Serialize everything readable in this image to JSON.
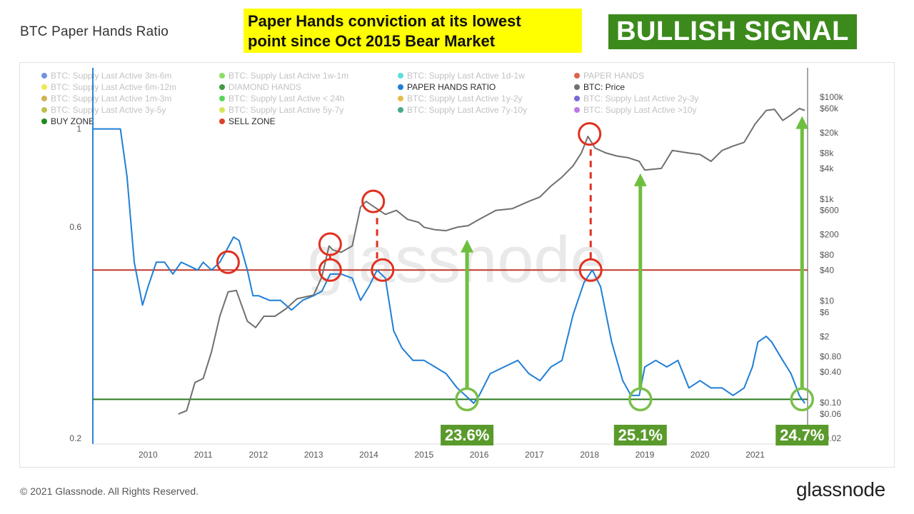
{
  "page": {
    "title": "BTC Paper Hands Ratio",
    "headline_line1": "Paper Hands conviction at its lowest",
    "headline_line2": "point since Oct 2015 Bear Market",
    "signal": "BULLISH SIGNAL",
    "copyright": "© 2021 Glassnode. All Rights Reserved.",
    "logo": "glassnode",
    "watermark": "glassnode"
  },
  "colors": {
    "ratio_line": "#1f7fd6",
    "price_line": "#707070",
    "sell_zone": "#c0392b",
    "buy_zone": "#2a7a1e",
    "headline_bg": "#ffff00",
    "signal_bg": "#3c8a1c",
    "arrow": "#6fbf3f",
    "marker_red": "#e03020",
    "marker_green": "#7abf4a",
    "label_bg": "#5a9a2c"
  },
  "chart_data": {
    "type": "line",
    "x_axis": {
      "ticks": [
        "2010",
        "2011",
        "2012",
        "2013",
        "2014",
        "2015",
        "2016",
        "2017",
        "2018",
        "2019",
        "2020",
        "2021"
      ],
      "range": [
        2009.0,
        2021.95
      ]
    },
    "y_left": {
      "scale": "log",
      "ticks": [
        "1",
        "0.6",
        "0.2"
      ],
      "tick_values": [
        1,
        0.6,
        0.2
      ],
      "range": [
        0.2,
        1.3
      ]
    },
    "y_right": {
      "scale": "log",
      "ticks": [
        "$100k",
        "$60k",
        "$20k",
        "$8k",
        "$4k",
        "$1k",
        "$600",
        "$200",
        "$80",
        "$40",
        "$10",
        "$6",
        "$2",
        "$0.80",
        "$0.40",
        "$0.10",
        "$0.06",
        "$0.02"
      ],
      "tick_values": [
        100000,
        60000,
        20000,
        8000,
        4000,
        1000,
        600,
        200,
        80,
        40,
        10,
        6,
        2,
        0.8,
        0.4,
        0.1,
        0.06,
        0.02
      ],
      "range": [
        0.02,
        180000
      ]
    },
    "legend": {
      "placement": "top-left",
      "items": [
        {
          "label": "BTC: Supply Last Active 3m-6m",
          "color": "#5b7fd6",
          "muted": true
        },
        {
          "label": "BTC: Supply Last Active 1w-1m",
          "color": "#7ad84a",
          "muted": true
        },
        {
          "label": "BTC: Supply Last Active 1d-1w",
          "color": "#3fd8d8",
          "muted": true
        },
        {
          "label": "PAPER HANDS",
          "color": "#d9452a",
          "muted": true
        },
        {
          "label": "BTC: Supply Last Active 6m-12m",
          "color": "#e6e63a",
          "muted": true
        },
        {
          "label": "DIAMOND HANDS",
          "color": "#1f8a1f",
          "muted": true
        },
        {
          "label": "PAPER HANDS RATIO",
          "color": "#1f7fd6",
          "muted": false
        },
        {
          "label": "BTC: Price",
          "color": "#707070",
          "muted": false
        },
        {
          "label": "BTC: Supply Last Active 1m-3m",
          "color": "#c9a33a",
          "muted": true
        },
        {
          "label": "BTC: Supply Last Active < 24h",
          "color": "#3fcc3f",
          "muted": true
        },
        {
          "label": "BTC: Supply Last Active 1y-2y",
          "color": "#e0b030",
          "muted": true
        },
        {
          "label": "BTC: Supply Last Active 2y-3y",
          "color": "#5a4fd0",
          "muted": true
        },
        {
          "label": "BTC: Supply Last Active 3y-5y",
          "color": "#b5b530",
          "muted": true
        },
        {
          "label": "BTC: Supply Last Active 5y-7y",
          "color": "#cfe040",
          "muted": true
        },
        {
          "label": "BTC: Supply Last Active 7y-10y",
          "color": "#2a9a7a",
          "muted": true
        },
        {
          "label": "BTC: Supply Last Active >10y",
          "color": "#b060e0",
          "muted": true
        },
        {
          "label": "BUY ZONE",
          "color": "#1f8a1f",
          "muted": false
        },
        {
          "label": "SELL ZONE",
          "color": "#d9452a",
          "muted": false
        }
      ]
    },
    "sell_zone_level": 0.48,
    "buy_zone_level": 0.245,
    "series": [
      {
        "name": "PAPER HANDS RATIO",
        "axis": "left",
        "x": [
          2009.0,
          2009.5,
          2009.62,
          2009.75,
          2009.9,
          2010.0,
          2010.15,
          2010.3,
          2010.45,
          2010.6,
          2010.75,
          2010.9,
          2011.0,
          2011.15,
          2011.3,
          2011.45,
          2011.55,
          2011.65,
          2011.8,
          2011.9,
          2012.0,
          2012.2,
          2012.4,
          2012.6,
          2012.8,
          2013.0,
          2013.15,
          2013.3,
          2013.5,
          2013.7,
          2013.85,
          2014.0,
          2014.15,
          2014.3,
          2014.45,
          2014.6,
          2014.8,
          2015.0,
          2015.2,
          2015.4,
          2015.6,
          2015.75,
          2015.9,
          2016.0,
          2016.2,
          2016.45,
          2016.7,
          2016.9,
          2017.1,
          2017.3,
          2017.5,
          2017.7,
          2017.9,
          2018.05,
          2018.2,
          2018.4,
          2018.6,
          2018.75,
          2018.9,
          2019.0,
          2019.2,
          2019.4,
          2019.6,
          2019.8,
          2020.0,
          2020.2,
          2020.4,
          2020.6,
          2020.8,
          2020.95,
          2021.05,
          2021.2,
          2021.3,
          2021.5,
          2021.65,
          2021.8,
          2021.9
        ],
        "y": [
          1.0,
          1.0,
          0.78,
          0.5,
          0.4,
          0.44,
          0.5,
          0.5,
          0.47,
          0.5,
          0.49,
          0.48,
          0.5,
          0.48,
          0.5,
          0.54,
          0.57,
          0.56,
          0.48,
          0.42,
          0.42,
          0.41,
          0.41,
          0.39,
          0.41,
          0.42,
          0.43,
          0.47,
          0.47,
          0.46,
          0.41,
          0.44,
          0.48,
          0.46,
          0.35,
          0.32,
          0.3,
          0.3,
          0.29,
          0.28,
          0.26,
          0.25,
          0.24,
          0.25,
          0.28,
          0.29,
          0.3,
          0.28,
          0.27,
          0.29,
          0.3,
          0.38,
          0.45,
          0.48,
          0.44,
          0.33,
          0.27,
          0.25,
          0.25,
          0.29,
          0.3,
          0.29,
          0.3,
          0.26,
          0.27,
          0.26,
          0.26,
          0.25,
          0.26,
          0.29,
          0.33,
          0.34,
          0.33,
          0.3,
          0.28,
          0.25,
          0.24
        ]
      },
      {
        "name": "BTC: Price",
        "axis": "right",
        "x": [
          2010.55,
          2010.7,
          2010.85,
          2011.0,
          2011.15,
          2011.3,
          2011.45,
          2011.6,
          2011.8,
          2011.95,
          2012.1,
          2012.3,
          2012.5,
          2012.7,
          2012.85,
          2013.0,
          2013.15,
          2013.28,
          2013.35,
          2013.5,
          2013.7,
          2013.85,
          2013.95,
          2014.1,
          2014.3,
          2014.5,
          2014.7,
          2014.9,
          2015.0,
          2015.2,
          2015.4,
          2015.6,
          2015.8,
          2016.0,
          2016.3,
          2016.6,
          2016.9,
          2017.1,
          2017.3,
          2017.5,
          2017.7,
          2017.85,
          2017.97,
          2018.1,
          2018.3,
          2018.5,
          2018.7,
          2018.9,
          2019.0,
          2019.3,
          2019.5,
          2019.8,
          2020.0,
          2020.2,
          2020.4,
          2020.6,
          2020.8,
          2021.0,
          2021.2,
          2021.35,
          2021.5,
          2021.65,
          2021.8,
          2021.9
        ],
        "y": [
          0.06,
          0.07,
          0.25,
          0.3,
          1,
          5,
          15,
          16,
          4,
          3,
          5,
          5,
          7,
          11,
          12,
          13,
          30,
          120,
          100,
          90,
          120,
          700,
          900,
          700,
          500,
          600,
          400,
          350,
          280,
          250,
          240,
          280,
          300,
          400,
          600,
          650,
          900,
          1100,
          1800,
          2700,
          4500,
          8000,
          17000,
          10000,
          8000,
          7000,
          6500,
          5500,
          3700,
          4000,
          9000,
          8000,
          7500,
          5500,
          9000,
          11000,
          13000,
          30000,
          55000,
          58000,
          35000,
          45000,
          60000,
          55000
        ]
      }
    ],
    "annotations": {
      "peak_markers": [
        {
          "x": 2011.45,
          "y": 0.5,
          "axis": "left"
        },
        {
          "x": 2013.3,
          "y": 0.48,
          "axis": "left"
        },
        {
          "x": 2014.25,
          "y": 0.48,
          "axis": "left"
        },
        {
          "x": 2018.02,
          "y": 0.48,
          "axis": "left"
        },
        {
          "x": 2013.3,
          "y": 130,
          "axis": "right"
        },
        {
          "x": 2014.08,
          "y": 900,
          "axis": "right"
        },
        {
          "x": 2018.0,
          "y": 19000,
          "axis": "right"
        }
      ],
      "dashed_links": [
        {
          "x": 2013.3,
          "from_left": 0.48,
          "to_right": 130
        },
        {
          "x": 2014.15,
          "from_left": 0.48,
          "to_right": 900
        },
        {
          "x": 2018.02,
          "from_left": 0.48,
          "to_right": 19000
        }
      ],
      "buy_markers": [
        {
          "x": 2015.78,
          "label": "23.6%",
          "arrow_top_price": 150
        },
        {
          "x": 2018.92,
          "label": "25.1%",
          "arrow_top_price": 3000
        },
        {
          "x": 2021.85,
          "label": "24.7%",
          "arrow_top_price": 40000
        }
      ]
    }
  }
}
